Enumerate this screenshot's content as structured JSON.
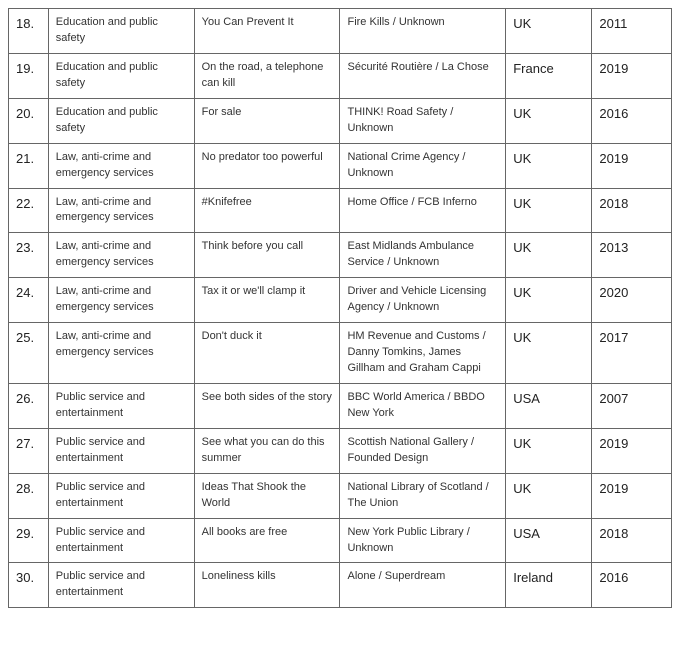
{
  "rows": [
    {
      "num": "18.",
      "category": "Education and public safety",
      "title": "You Can Prevent It",
      "org": "Fire Kills / Unknown",
      "country": "UK",
      "year": "2011"
    },
    {
      "num": "19.",
      "category": "Education and public safety",
      "title": "On the road, a telephone can kill",
      "org": "Sécurité Routière / La Chose",
      "country": "France",
      "year": "2019"
    },
    {
      "num": "20.",
      "category": "Education and public safety",
      "title": "For sale",
      "org": "THINK! Road Safety / Unknown",
      "country": "UK",
      "year": "2016"
    },
    {
      "num": "21.",
      "category": "Law, anti-crime and emergency services",
      "title": "No predator too powerful",
      "org": "National Crime Agency / Unknown",
      "country": "UK",
      "year": "2019"
    },
    {
      "num": "22.",
      "category": "Law, anti-crime and emergency services",
      "title": "#Knifefree",
      "org": "Home Office / FCB Inferno",
      "country": "UK",
      "year": "2018"
    },
    {
      "num": "23.",
      "category": "Law, anti-crime and emergency services",
      "title": "Think before you call",
      "org": "East Midlands Ambulance Service / Unknown",
      "country": "UK",
      "year": "2013"
    },
    {
      "num": "24.",
      "category": "Law, anti-crime and emergency services",
      "title": "Tax it or we'll clamp it",
      "org": "Driver and Vehicle Licensing Agency / Unknown",
      "country": "UK",
      "year": "2020"
    },
    {
      "num": "25.",
      "category": "Law, anti-crime and emergency services",
      "title": "Don't duck it",
      "org": "HM Revenue and Customs / Danny Tomkins, James Gillham and Graham Cappi",
      "country": "UK",
      "year": "2017"
    },
    {
      "num": "26.",
      "category": "Public service and entertainment",
      "title": "See both sides of the story",
      "org": "BBC World America / BBDO New York",
      "country": "USA",
      "year": "2007"
    },
    {
      "num": "27.",
      "category": "Public service and entertainment",
      "title": "See what you can do this summer",
      "org": "Scottish National Gallery / Founded Design",
      "country": "UK",
      "year": "2019"
    },
    {
      "num": "28.",
      "category": "Public service and entertainment",
      "title": "Ideas That Shook the World",
      "org": "National Library of Scotland / The Union",
      "country": "UK",
      "year": "2019"
    },
    {
      "num": "29.",
      "category": "Public service and entertainment",
      "title": "All books are free",
      "org": "New York Public Library / Unknown",
      "country": "USA",
      "year": "2018"
    },
    {
      "num": "30.",
      "category": "Public service and entertainment",
      "title": "Loneliness kills",
      "org": "Alone / Superdream",
      "country": "Ireland",
      "year": "2016"
    }
  ]
}
